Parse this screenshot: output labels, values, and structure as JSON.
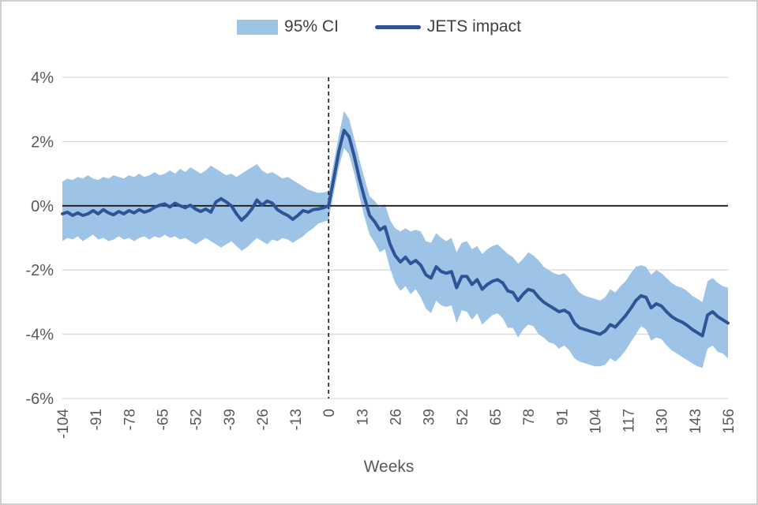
{
  "figure": {
    "background": "#ffffff",
    "border_color": "#cfcfcf"
  },
  "legend": {
    "ci_label": "95% CI",
    "impact_label": "JETS impact"
  },
  "chart_data": {
    "type": "line",
    "title": "",
    "xlabel": "Weeks",
    "ylabel": "",
    "x_unit": "weeks relative to event",
    "xlim": [
      -104,
      156
    ],
    "ylim": [
      -6,
      4
    ],
    "grid": "horizontal",
    "legend_position": "top-center",
    "x_tick_values": [
      -104,
      -91,
      -78,
      -65,
      -52,
      -39,
      -26,
      -13,
      0,
      13,
      26,
      39,
      52,
      65,
      78,
      91,
      104,
      117,
      130,
      143,
      156
    ],
    "y_tick_values": [
      4,
      2,
      0,
      -2,
      -4,
      -6
    ],
    "y_tick_labels": [
      "4%",
      "2%",
      "0%",
      "-2%",
      "-4%",
      "-6%"
    ],
    "event_line_x": 0,
    "colors": {
      "band": "#9DC3E6",
      "line": "#2F5496",
      "gridline": "#d9d9d9",
      "zero_line": "#1a1a1a",
      "event_line": "#1a1a1a",
      "axis_text": "#595959",
      "legend_text": "#404040"
    },
    "x_start": -104,
    "x_step": 2,
    "series": [
      {
        "name": "JETS impact",
        "unit": "%",
        "values": [
          -0.25,
          -0.2,
          -0.3,
          -0.22,
          -0.3,
          -0.25,
          -0.15,
          -0.25,
          -0.12,
          -0.22,
          -0.28,
          -0.18,
          -0.25,
          -0.15,
          -0.22,
          -0.12,
          -0.2,
          -0.15,
          -0.05,
          0.02,
          0.06,
          -0.04,
          0.08,
          0,
          -0.06,
          0.02,
          -0.1,
          -0.18,
          -0.1,
          -0.2,
          0.12,
          0.22,
          0.12,
          0,
          -0.25,
          -0.45,
          -0.3,
          -0.1,
          0.18,
          0.02,
          0.15,
          0.08,
          -0.12,
          -0.22,
          -0.3,
          -0.42,
          -0.3,
          -0.15,
          -0.2,
          -0.12,
          -0.1,
          -0.06,
          0,
          0.85,
          1.7,
          2.35,
          2.15,
          1.55,
          0.85,
          0.25,
          -0.3,
          -0.5,
          -0.75,
          -0.65,
          -1.2,
          -1.55,
          -1.75,
          -1.6,
          -1.8,
          -1.7,
          -1.85,
          -2.15,
          -2.25,
          -1.9,
          -2.05,
          -2.1,
          -2.05,
          -2.55,
          -2.2,
          -2.2,
          -2.45,
          -2.3,
          -2.6,
          -2.45,
          -2.35,
          -2.3,
          -2.4,
          -2.65,
          -2.7,
          -2.95,
          -2.75,
          -2.6,
          -2.65,
          -2.85,
          -3,
          -3.1,
          -3.2,
          -3.3,
          -3.25,
          -3.35,
          -3.65,
          -3.8,
          -3.85,
          -3.9,
          -3.95,
          -4,
          -3.9,
          -3.7,
          -3.78,
          -3.6,
          -3.42,
          -3.2,
          -2.95,
          -2.8,
          -2.85,
          -3.18,
          -3.05,
          -3.12,
          -3.3,
          -3.45,
          -3.55,
          -3.62,
          -3.72,
          -3.85,
          -3.95,
          -4.05,
          -3.4,
          -3.3,
          -3.45,
          -3.55,
          -3.65
        ]
      },
      {
        "name": "95% CI upper",
        "unit": "%",
        "values": [
          0.75,
          0.85,
          0.8,
          0.9,
          0.85,
          0.95,
          0.85,
          0.8,
          0.9,
          0.85,
          0.95,
          0.9,
          0.85,
          0.95,
          0.9,
          1,
          0.9,
          0.95,
          1.05,
          0.95,
          1,
          1.1,
          1,
          1.15,
          1.05,
          1.2,
          1.1,
          1,
          1.1,
          1.25,
          1.15,
          1.05,
          0.95,
          1,
          0.9,
          1,
          1.1,
          1.2,
          1.3,
          1.1,
          1,
          1.05,
          0.95,
          0.85,
          0.9,
          0.8,
          0.7,
          0.6,
          0.5,
          0.45,
          0.4,
          0.42,
          0.45,
          1.35,
          2.2,
          2.95,
          2.7,
          2.1,
          1.45,
          0.85,
          0.3,
          0.15,
          -0.05,
          0.05,
          -0.45,
          -0.7,
          -0.8,
          -0.7,
          -0.8,
          -0.75,
          -0.8,
          -1.1,
          -1.15,
          -0.85,
          -1,
          -1.1,
          -1,
          -1.45,
          -1.15,
          -1.1,
          -1.35,
          -1.25,
          -1.5,
          -1.35,
          -1.25,
          -1.2,
          -1.35,
          -1.5,
          -1.6,
          -1.8,
          -1.65,
          -1.45,
          -1.55,
          -1.7,
          -1.9,
          -2,
          -2.1,
          -2.15,
          -2.1,
          -2.25,
          -2.5,
          -2.7,
          -2.8,
          -2.85,
          -2.9,
          -2.95,
          -2.85,
          -2.6,
          -2.7,
          -2.5,
          -2.35,
          -2.1,
          -1.9,
          -1.85,
          -1.9,
          -2.15,
          -2,
          -2.1,
          -2.25,
          -2.4,
          -2.5,
          -2.55,
          -2.65,
          -2.8,
          -2.9,
          -3,
          -2.35,
          -2.25,
          -2.4,
          -2.5,
          -2.55
        ]
      },
      {
        "name": "95% CI lower",
        "unit": "%",
        "values": [
          -1.1,
          -1,
          -1.05,
          -0.95,
          -1.1,
          -1,
          -0.9,
          -1.05,
          -1,
          -1.1,
          -1.05,
          -0.95,
          -1.05,
          -1,
          -1.1,
          -1,
          -0.95,
          -1.05,
          -0.95,
          -1,
          -0.9,
          -1,
          -0.95,
          -1.05,
          -1,
          -1.1,
          -1.2,
          -1.1,
          -1,
          -1.1,
          -1.2,
          -1.3,
          -1.2,
          -1.1,
          -1.25,
          -1.4,
          -1.3,
          -1.15,
          -1,
          -1.1,
          -1.2,
          -1.05,
          -1.1,
          -1,
          -1.05,
          -1.15,
          -1.05,
          -0.95,
          -0.8,
          -0.7,
          -0.55,
          -0.5,
          -0.45,
          0.4,
          1.2,
          1.8,
          1.6,
          1,
          0.3,
          -0.35,
          -0.9,
          -1.15,
          -1.45,
          -1.35,
          -1.95,
          -2.4,
          -2.65,
          -2.5,
          -2.75,
          -2.6,
          -2.85,
          -3.2,
          -3.35,
          -2.95,
          -3.1,
          -3.15,
          -3.1,
          -3.65,
          -3.25,
          -3.3,
          -3.55,
          -3.35,
          -3.7,
          -3.55,
          -3.4,
          -3.35,
          -3.5,
          -3.8,
          -3.8,
          -4.1,
          -3.85,
          -3.7,
          -3.75,
          -4,
          -4.1,
          -4.25,
          -4.3,
          -4.45,
          -4.35,
          -4.5,
          -4.75,
          -4.85,
          -4.9,
          -4.95,
          -5,
          -5,
          -4.95,
          -4.75,
          -4.85,
          -4.7,
          -4.5,
          -4.25,
          -4,
          -3.75,
          -3.85,
          -4.2,
          -4.1,
          -4.15,
          -4.35,
          -4.5,
          -4.6,
          -4.7,
          -4.8,
          -4.9,
          -5,
          -5.05,
          -4.45,
          -4.35,
          -4.55,
          -4.6,
          -4.75
        ]
      }
    ]
  }
}
